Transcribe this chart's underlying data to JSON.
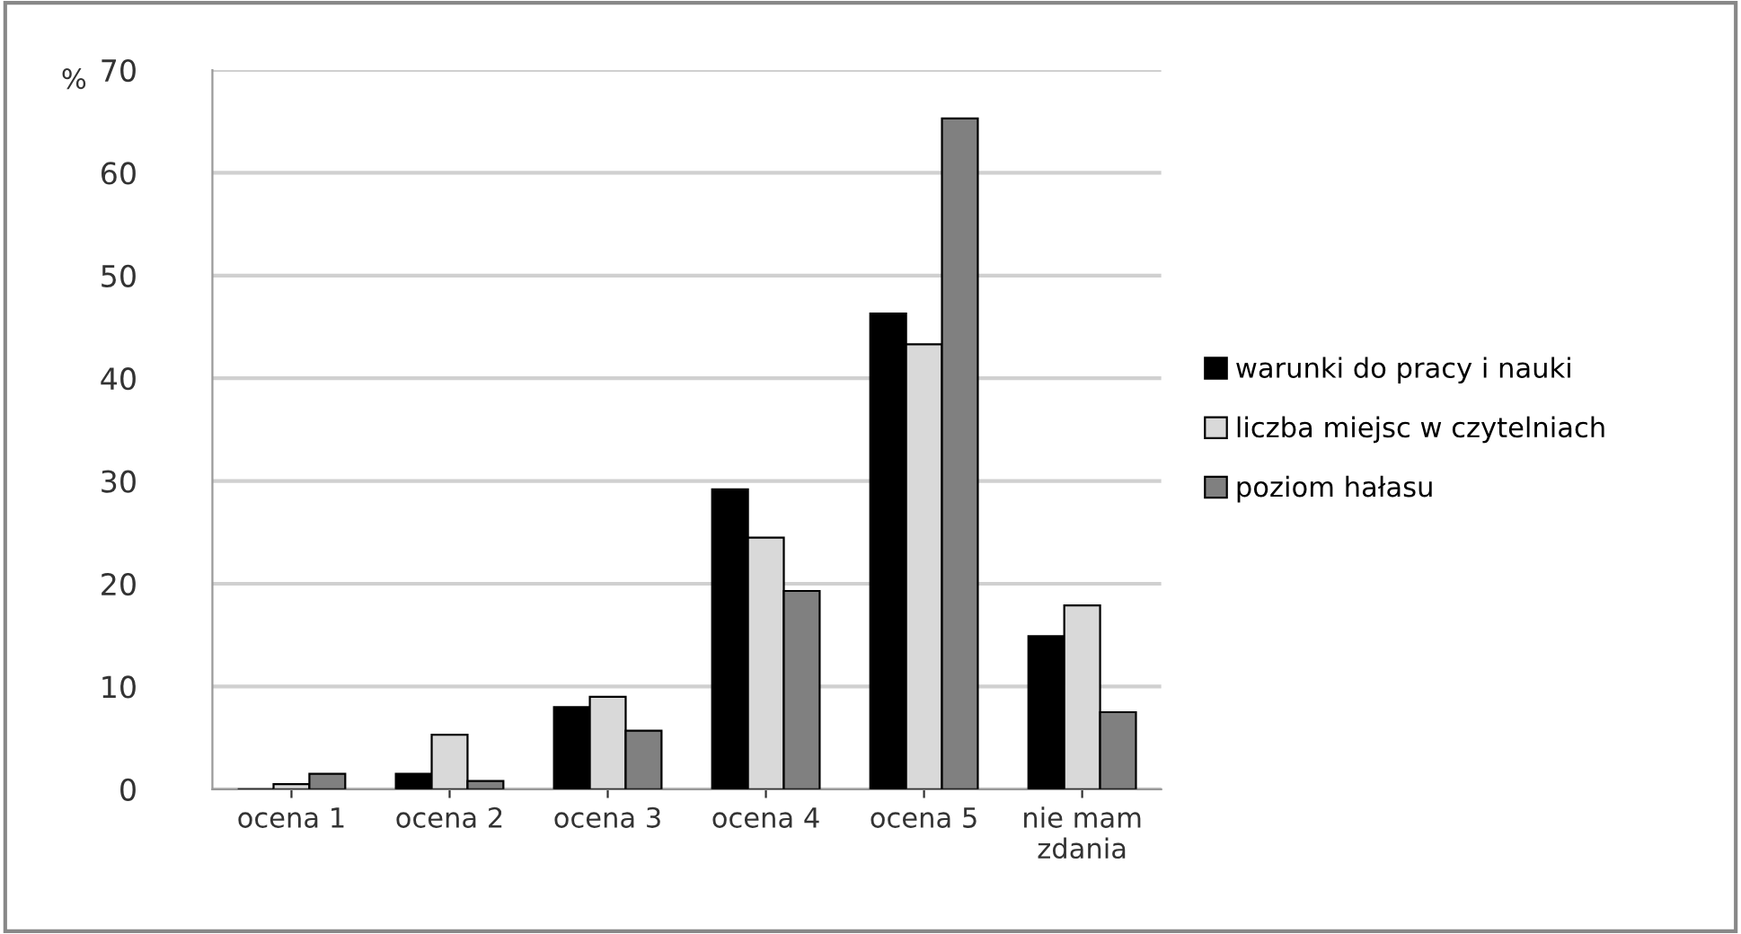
{
  "chart_data": {
    "type": "bar",
    "ylabel": "%",
    "categories": [
      "ocena 1",
      "ocena 2",
      "ocena 3",
      "ocena 4",
      "ocena 5",
      "nie mam\nzdania"
    ],
    "series": [
      {
        "name": "warunki do pracy i nauki",
        "color": "#000000",
        "values": [
          0,
          1.5,
          8,
          29.2,
          46.3,
          14.9
        ]
      },
      {
        "name": "liczba miejsc w czytelniach",
        "color": "#d9d9d9",
        "values": [
          0.5,
          5.3,
          9,
          24.5,
          43.3,
          17.9
        ]
      },
      {
        "name": "poziom hałasu",
        "color": "#808080",
        "values": [
          1.5,
          0.8,
          5.7,
          19.3,
          65.3,
          7.5
        ]
      }
    ],
    "ylim": [
      0,
      70
    ],
    "yticks": [
      0,
      10,
      20,
      30,
      40,
      50,
      60,
      70
    ],
    "grid": "y",
    "legend": "right"
  }
}
